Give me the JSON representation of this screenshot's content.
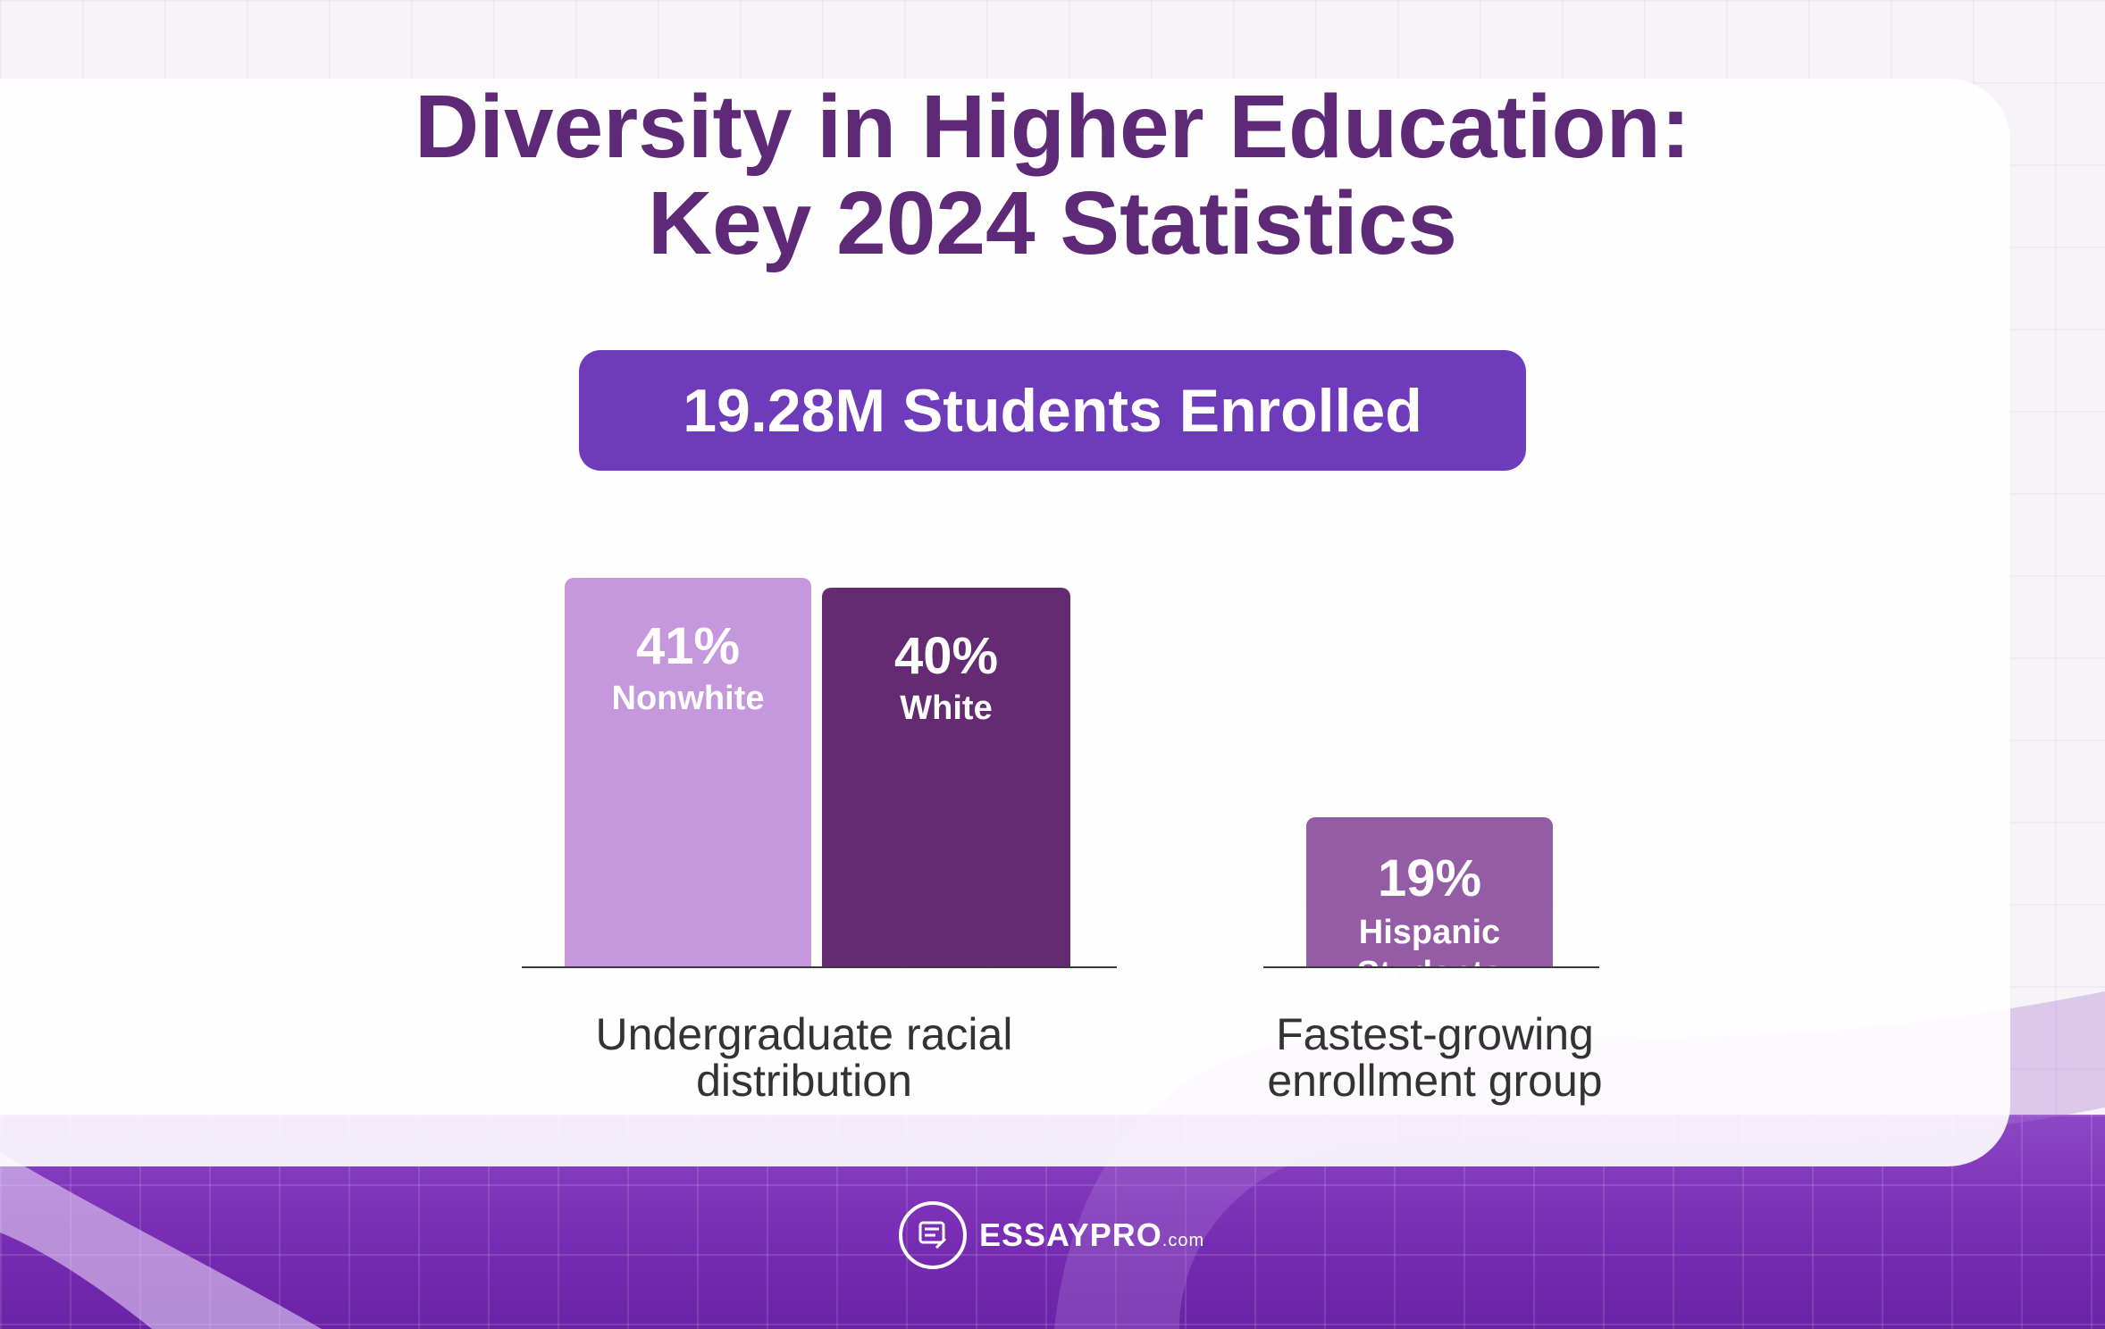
{
  "title": {
    "line1": "Diversity in Higher Education:",
    "line2": "Key 2024 Statistics"
  },
  "headline": "19.28M Students Enrolled",
  "colors": {
    "title": "#5e2a78",
    "headline_bg": "#6e3bbb",
    "nonwhite": "#c597dc",
    "white": "#642b73",
    "hispanic": "#955ca6"
  },
  "chart_data": [
    {
      "type": "bar",
      "caption": "Undergraduate racial distribution",
      "bars": [
        {
          "value": 41,
          "value_label": "41%",
          "label": "Nonwhite",
          "color": "#c597dc"
        },
        {
          "value": 40,
          "value_label": "40%",
          "label": "White",
          "color": "#642b73"
        }
      ],
      "grid": false
    },
    {
      "type": "bar",
      "caption_lines": [
        "Fastest-growing",
        "enrollment group"
      ],
      "bars": [
        {
          "value": 19,
          "value_label": "19%",
          "label_lines": [
            "Hispanic",
            "Students"
          ],
          "color": "#955ca6"
        }
      ],
      "grid": false
    }
  ],
  "logo": {
    "name": "ESSAY",
    "name_bold": "PRO",
    "suffix": ".com",
    "icon": "essay-document-icon"
  }
}
